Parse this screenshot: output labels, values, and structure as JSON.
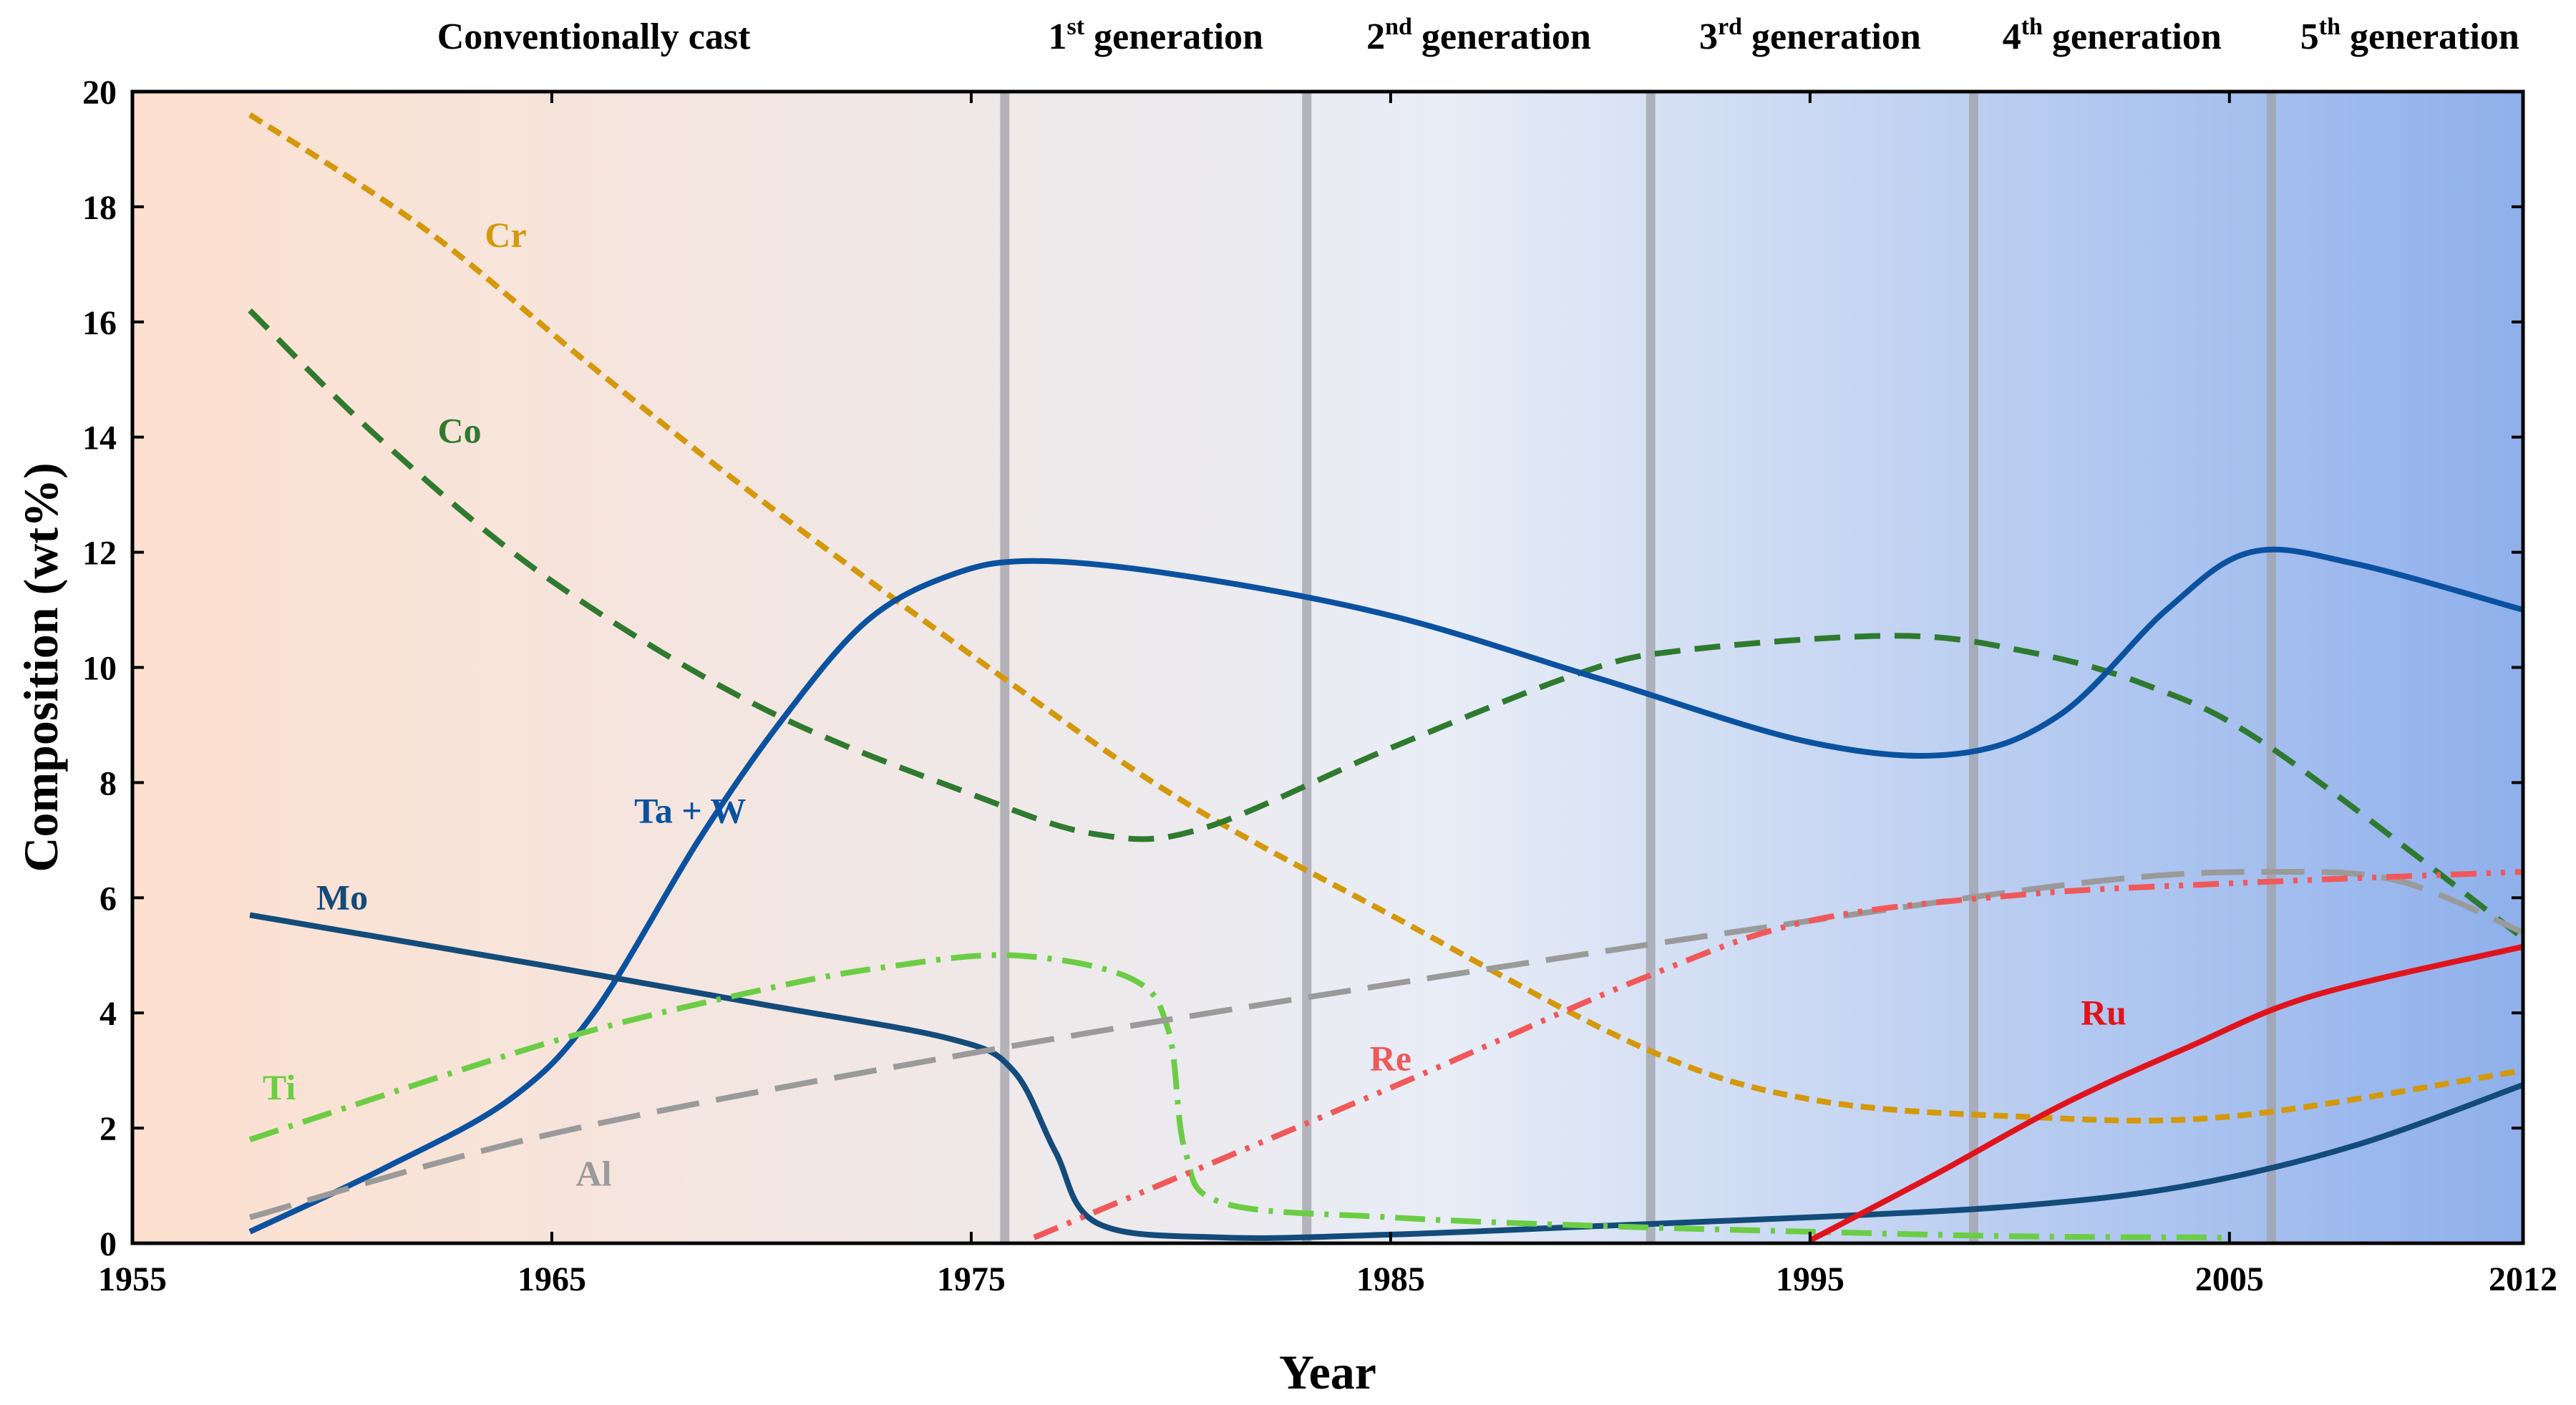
{
  "chart_data": {
    "type": "line",
    "xlabel": "Year",
    "ylabel": "Composition (wt%)",
    "xlim": [
      1955,
      2012
    ],
    "ylim": [
      0,
      20
    ],
    "x_ticks": [
      1955,
      1965,
      1975,
      1985,
      1995,
      2005,
      2012
    ],
    "y_ticks": [
      0,
      2,
      4,
      6,
      8,
      10,
      12,
      14,
      16,
      18,
      20
    ],
    "background": {
      "type": "horizontal-gradient",
      "start_color": "#fde0cf",
      "mid_color": "#e8edf6",
      "end_color": "#8fb0ec"
    },
    "generation_lines": [
      1975.8,
      1983.0,
      1991.2,
      1998.9,
      2006.0
    ],
    "generation_line_color": "#a0a0a8",
    "eras": [
      {
        "base": "Conventionally cast",
        "sup": "",
        "rest": "",
        "center_year": 1966.0
      },
      {
        "base": "1",
        "sup": "st",
        "rest": " generation",
        "center_year": 1979.4
      },
      {
        "base": "2",
        "sup": "nd",
        "rest": " generation",
        "center_year": 1987.1
      },
      {
        "base": "3",
        "sup": "rd",
        "rest": " generation",
        "center_year": 1995.0
      },
      {
        "base": "4",
        "sup": "th",
        "rest": " generation",
        "center_year": 2002.2
      },
      {
        "base": "5",
        "sup": "th",
        "rest": " generation",
        "center_year": 2009.3
      }
    ],
    "series": [
      {
        "name": "Cr",
        "color": "#d4980a",
        "dash": "short-dash",
        "label_pos": [
          1963.9,
          17.3
        ],
        "points": [
          [
            1957.8,
            19.6
          ],
          [
            1962,
            17.6
          ],
          [
            1966,
            15.2
          ],
          [
            1970,
            12.9
          ],
          [
            1975.8,
            9.8
          ],
          [
            1980,
            7.7
          ],
          [
            1985,
            5.7
          ],
          [
            1991,
            3.4
          ],
          [
            1995,
            2.5
          ],
          [
            2000,
            2.2
          ],
          [
            2005,
            2.2
          ],
          [
            2012,
            3.0
          ]
        ]
      },
      {
        "name": "Co",
        "color": "#2f7a2f",
        "dash": "dash",
        "label_pos": [
          1962.8,
          13.9
        ],
        "points": [
          [
            1957.8,
            16.2
          ],
          [
            1961,
            13.9
          ],
          [
            1965,
            11.5
          ],
          [
            1970,
            9.3
          ],
          [
            1975,
            7.8
          ],
          [
            1978,
            7.1
          ],
          [
            1980.5,
            7.2
          ],
          [
            1985,
            8.6
          ],
          [
            1989.5,
            9.9
          ],
          [
            1992,
            10.3
          ],
          [
            1997,
            10.55
          ],
          [
            2000,
            10.3
          ],
          [
            2003,
            9.7
          ],
          [
            2006,
            8.6
          ],
          [
            2012,
            5.3
          ]
        ]
      },
      {
        "name": "Ta + W",
        "color": "#0a52a0",
        "dash": "solid",
        "label_pos": [
          1968.3,
          7.3
        ],
        "points": [
          [
            1957.8,
            0.2
          ],
          [
            1961,
            1.3
          ],
          [
            1964,
            2.5
          ],
          [
            1966,
            4.0
          ],
          [
            1968.5,
            7.0
          ],
          [
            1970.5,
            9.1
          ],
          [
            1972.5,
            10.8
          ],
          [
            1974.5,
            11.6
          ],
          [
            1976.5,
            11.85
          ],
          [
            1980,
            11.6
          ],
          [
            1985,
            10.9
          ],
          [
            1990,
            9.8
          ],
          [
            1995,
            8.7
          ],
          [
            1998.5,
            8.5
          ],
          [
            2001,
            9.2
          ],
          [
            2003.5,
            11.0
          ],
          [
            2005.5,
            12.0
          ],
          [
            2008,
            11.8
          ],
          [
            2012,
            11.0
          ]
        ]
      },
      {
        "name": "Mo",
        "color": "#134b7a",
        "dash": "solid",
        "label_pos": [
          1960.0,
          5.8
        ],
        "points": [
          [
            1957.8,
            5.7
          ],
          [
            1965,
            4.8
          ],
          [
            1970,
            4.15
          ],
          [
            1974.5,
            3.55
          ],
          [
            1976,
            3.0
          ],
          [
            1977,
            1.6
          ],
          [
            1978,
            0.35
          ],
          [
            1981,
            0.1
          ],
          [
            1985,
            0.15
          ],
          [
            1990,
            0.3
          ],
          [
            1995,
            0.45
          ],
          [
            2000,
            0.65
          ],
          [
            2004,
            1.0
          ],
          [
            2008,
            1.7
          ],
          [
            2012,
            2.75
          ]
        ]
      },
      {
        "name": "Ti",
        "color": "#6ccd45",
        "dash": "dash-dot",
        "label_pos": [
          1958.5,
          2.5
        ],
        "points": [
          [
            1957.8,
            1.8
          ],
          [
            1965,
            3.5
          ],
          [
            1970,
            4.4
          ],
          [
            1973,
            4.8
          ],
          [
            1976,
            5.0
          ],
          [
            1978.8,
            4.6
          ],
          [
            1979.7,
            3.7
          ],
          [
            1980.1,
            1.6
          ],
          [
            1981,
            0.7
          ],
          [
            1985,
            0.45
          ],
          [
            1990,
            0.3
          ],
          [
            1995,
            0.2
          ],
          [
            2000,
            0.12
          ],
          [
            2005,
            0.1
          ]
        ]
      },
      {
        "name": "Al",
        "color": "#9a9a9a",
        "dash": "long-dash",
        "label_pos": [
          1966.0,
          1.0
        ],
        "points": [
          [
            1957.8,
            0.45
          ],
          [
            1965,
            1.9
          ],
          [
            1975,
            3.3
          ],
          [
            1985,
            4.5
          ],
          [
            1995,
            5.6
          ],
          [
            2002,
            6.3
          ],
          [
            2006,
            6.45
          ],
          [
            2009,
            6.3
          ],
          [
            2012,
            5.4
          ]
        ]
      },
      {
        "name": "Re",
        "color": "#f0585a",
        "dash": "dash-dot-dot",
        "label_pos": [
          1985.0,
          3.0
        ],
        "points": [
          [
            1976.5,
            0.1
          ],
          [
            1985,
            2.7
          ],
          [
            1991,
            4.6
          ],
          [
            1995,
            5.6
          ],
          [
            2000,
            6.05
          ],
          [
            2005,
            6.25
          ],
          [
            2012,
            6.45
          ]
        ]
      },
      {
        "name": "Ru",
        "color": "#e0141c",
        "dash": "solid",
        "label_pos": [
          2002.0,
          3.8
        ],
        "points": [
          [
            1995,
            0.05
          ],
          [
            1998,
            1.2
          ],
          [
            2001,
            2.4
          ],
          [
            2004,
            3.4
          ],
          [
            2007,
            4.3
          ],
          [
            2012,
            5.15
          ]
        ]
      }
    ]
  }
}
